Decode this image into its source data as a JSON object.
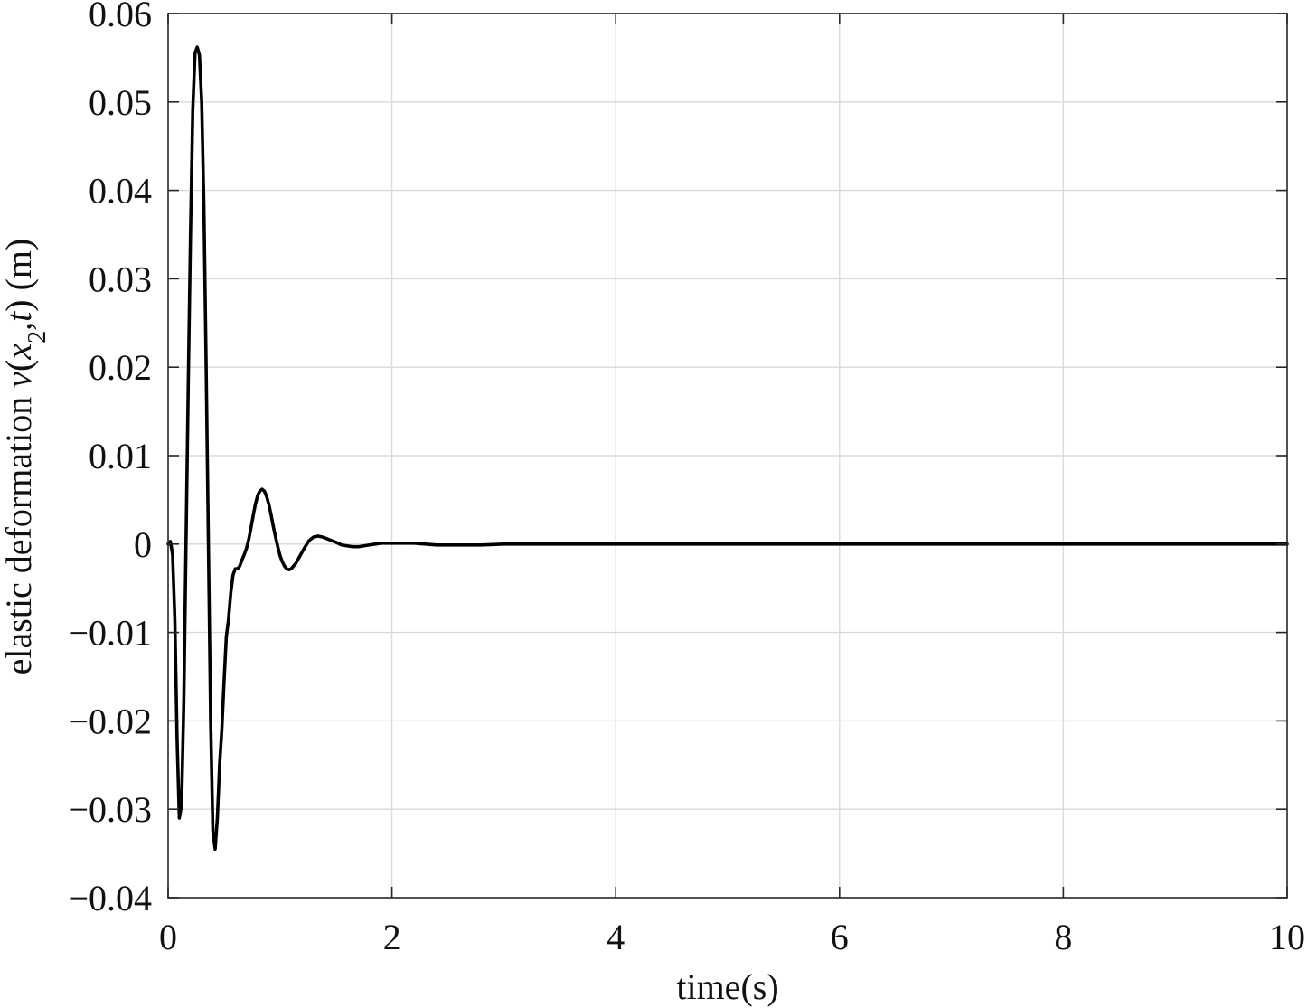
{
  "chart_data": {
    "type": "line",
    "title": "",
    "xlabel": "time(s)",
    "ylabel": {
      "prefix": "elastic deformation ",
      "symbol": "ν",
      "open_paren": "(",
      "x": "x",
      "subscript": "2",
      "comma": ",",
      "t": "t",
      "close_paren": ")",
      "unit": " (m)"
    },
    "xlim": [
      0,
      10
    ],
    "ylim": [
      -0.04,
      0.06
    ],
    "xticks": [
      0,
      2,
      4,
      6,
      8,
      10
    ],
    "xtick_labels": [
      "0",
      "2",
      "4",
      "6",
      "8",
      "10"
    ],
    "yticks": [
      -0.04,
      -0.03,
      -0.02,
      -0.01,
      0,
      0.01,
      0.02,
      0.03,
      0.04,
      0.05,
      0.06
    ],
    "ytick_labels": [
      "−0.04",
      "−0.03",
      "−0.02",
      "−0.01",
      "0",
      "0.01",
      "0.02",
      "0.03",
      "0.04",
      "0.05",
      "0.06"
    ],
    "grid": true,
    "legend": false,
    "line_color": "#000000",
    "series": [
      {
        "x": [
          0,
          0.02,
          0.04,
          0.06,
          0.08,
          0.1,
          0.12,
          0.14,
          0.16,
          0.18,
          0.2,
          0.22,
          0.24,
          0.26,
          0.28,
          0.3,
          0.32,
          0.34,
          0.36,
          0.38,
          0.4,
          0.42,
          0.44,
          0.46,
          0.48,
          0.5,
          0.52,
          0.54,
          0.56,
          0.58,
          0.6,
          0.62,
          0.64,
          0.66,
          0.68,
          0.7,
          0.72,
          0.74,
          0.76,
          0.78,
          0.8,
          0.82,
          0.84,
          0.86,
          0.88,
          0.9,
          0.92,
          0.94,
          0.96,
          0.98,
          1.0,
          1.02,
          1.04,
          1.06,
          1.08,
          1.1,
          1.14,
          1.18,
          1.22,
          1.26,
          1.3,
          1.34,
          1.38,
          1.42,
          1.46,
          1.5,
          1.55,
          1.6,
          1.65,
          1.7,
          1.75,
          1.8,
          1.85,
          1.9,
          1.95,
          2.0,
          2.05,
          2.1,
          2.2,
          2.3,
          2.4,
          2.5,
          2.6,
          2.7,
          2.8,
          3.0,
          3.2,
          3.5,
          4.0,
          5.0,
          6.0,
          7.0,
          8.0,
          9.0,
          10.0
        ],
        "y": [
          0.0,
          0.0003,
          -0.0012,
          -0.0085,
          -0.022,
          -0.031,
          -0.0295,
          -0.018,
          0.0,
          0.018,
          0.035,
          0.049,
          0.0555,
          0.0562,
          0.0553,
          0.05,
          0.038,
          0.02,
          0.0,
          -0.02,
          -0.0325,
          -0.0345,
          -0.031,
          -0.025,
          -0.021,
          -0.0155,
          -0.0105,
          -0.0085,
          -0.0055,
          -0.0035,
          -0.0028,
          -0.0028,
          -0.0025,
          -0.0018,
          -0.0012,
          -0.0005,
          0.0005,
          0.0018,
          0.0032,
          0.0045,
          0.0055,
          0.006,
          0.0062,
          0.006,
          0.0054,
          0.0045,
          0.0033,
          0.002,
          0.0008,
          -0.0003,
          -0.0013,
          -0.002,
          -0.0025,
          -0.0028,
          -0.0029,
          -0.0028,
          -0.0022,
          -0.0013,
          -0.0004,
          0.0004,
          0.0008,
          0.0009,
          0.0008,
          0.0006,
          0.0004,
          0.0002,
          -0.0001,
          -0.0002,
          -0.0003,
          -0.0003,
          -0.0002,
          -0.0001,
          0.0,
          0.0001,
          0.0001,
          0.0001,
          0.0001,
          0.0001,
          0.0001,
          0.0,
          -0.0001,
          -0.0001,
          -0.0001,
          -0.0001,
          -0.0001,
          0.0,
          0.0,
          0.0,
          0.0,
          0.0,
          0.0,
          0.0,
          0.0,
          0.0,
          0.0
        ]
      }
    ]
  }
}
